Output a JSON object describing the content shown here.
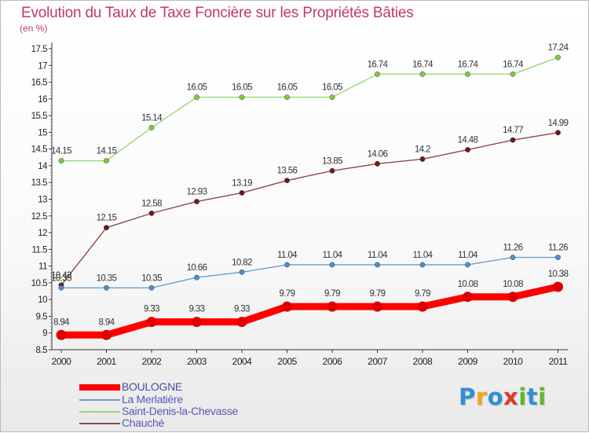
{
  "chart_data": {
    "type": "line",
    "title": "Evolution du Taux de Taxe Foncière sur les Propriétés Bâties",
    "unit_label": "(en %)",
    "xlabel": "",
    "ylabel": "",
    "categories": [
      "2000",
      "2001",
      "2002",
      "2003",
      "2004",
      "2005",
      "2006",
      "2007",
      "2008",
      "2009",
      "2010",
      "2011"
    ],
    "ylim": [
      8.5,
      17.5
    ],
    "yticks": [
      "8.5",
      "9",
      "9.5",
      "10",
      "10.5",
      "11",
      "11.5",
      "12",
      "12.5",
      "13",
      "13.5",
      "14",
      "14.5",
      "15",
      "15.5",
      "16",
      "16.5",
      "17",
      "17.5"
    ],
    "grid": false,
    "legend_position": "bottom-left",
    "series": [
      {
        "name": "BOULOGNE",
        "color": "#ff0000",
        "marker_color": "#dd0000",
        "bold": true,
        "values": [
          8.94,
          8.94,
          9.33,
          9.33,
          9.33,
          9.79,
          9.79,
          9.79,
          9.79,
          10.08,
          10.08,
          10.38
        ],
        "labels": [
          "8.94",
          "8.94",
          "9.33",
          "9.33",
          "9.33",
          "9.79",
          "9.79",
          "9.79",
          "9.79",
          "10.08",
          "10.08",
          "10.38"
        ]
      },
      {
        "name": "La Merlatière",
        "color": "#6d9ecc",
        "marker_color": "#4d8ed0",
        "bold": false,
        "values": [
          10.35,
          10.35,
          10.35,
          10.66,
          10.82,
          11.04,
          11.04,
          11.04,
          11.04,
          11.04,
          11.26,
          11.26
        ],
        "labels": [
          "10.35",
          "10.35",
          "10.35",
          "10.66",
          "10.82",
          "11.04",
          "11.04",
          "11.04",
          "11.04",
          "11.04",
          "11.26",
          "11.26"
        ]
      },
      {
        "name": "Saint-Denis-la-Chevasse",
        "color": "#9cd872",
        "marker_color": "#7ccc3c",
        "bold": false,
        "values": [
          14.15,
          14.15,
          15.14,
          16.05,
          16.05,
          16.05,
          16.05,
          16.74,
          16.74,
          16.74,
          16.74,
          17.24
        ],
        "labels": [
          "14.15",
          "14.15",
          "15.14",
          "16.05",
          "16.05",
          "16.05",
          "16.05",
          "16.74",
          "16.74",
          "16.74",
          "16.74",
          "17.24"
        ]
      },
      {
        "name": "Chauché",
        "color": "#8a4a4a",
        "marker_color": "#6a1a1a",
        "bold": false,
        "values": [
          10.43,
          12.15,
          12.58,
          12.93,
          13.19,
          13.56,
          13.85,
          14.06,
          14.2,
          14.48,
          14.77,
          14.99
        ],
        "labels": [
          "10.43",
          "12.15",
          "12.58",
          "12.93",
          "13.19",
          "13.56",
          "13.85",
          "14.06",
          "14.2",
          "14.48",
          "14.77",
          "14.99"
        ]
      }
    ]
  },
  "logo": {
    "letters": [
      "P",
      "r",
      "o",
      "x",
      "i",
      "t",
      "i"
    ],
    "colors": [
      "#2f8fd8",
      "#f2a51c",
      "#2f8fd8",
      "#e03a2a",
      "#5db82c",
      "#2f8fd8",
      "#5db82c"
    ]
  }
}
